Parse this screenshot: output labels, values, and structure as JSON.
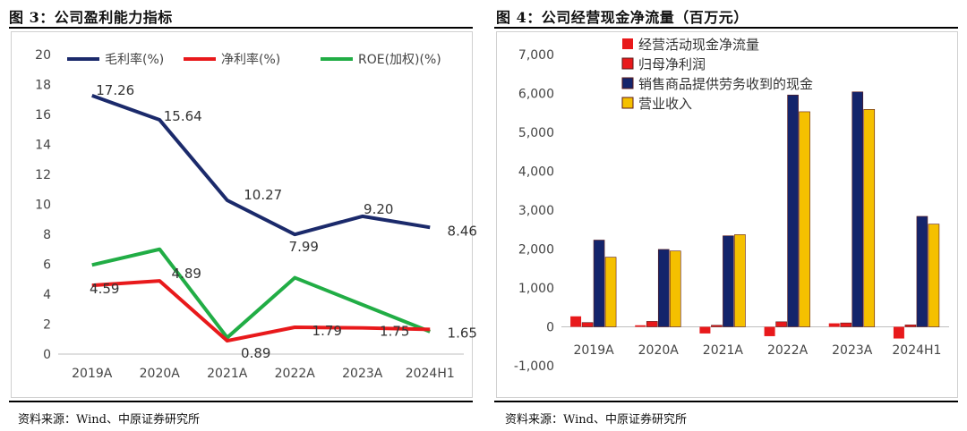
{
  "left": {
    "title": "图 3：公司盈利能力指标",
    "source": "资料来源：Wind、中原证券研究所"
  },
  "right": {
    "title": "图 4：公司经营现金净流量（百万元）",
    "source": "资料来源：Wind、中原证券研究所"
  },
  "colors": {
    "navy": "#1b2a6b",
    "red": "#e8191b",
    "green": "#21ad45",
    "gold": "#f5c000",
    "bar_red": "#e8191b",
    "bar_brown": "#e8191b",
    "bar_navy": "#14246b"
  },
  "chart_data": [
    {
      "type": "line",
      "categories": [
        "2019A",
        "2020A",
        "2021A",
        "2022A",
        "2023A",
        "2024H1"
      ],
      "ylim": [
        0,
        20
      ],
      "yticks": [
        "0",
        "2",
        "4",
        "6",
        "8",
        "10",
        "12",
        "14",
        "16",
        "18",
        "20"
      ],
      "legend_position": "top",
      "grid": false,
      "series": [
        {
          "name": "毛利率(%)",
          "color": "#1b2a6b",
          "values": [
            17.26,
            15.64,
            10.27,
            7.99,
            9.2,
            8.46
          ],
          "labels": [
            "17.26",
            "15.64",
            "10.27",
            "7.99",
            "9.20",
            "8.46"
          ]
        },
        {
          "name": "净利率(%)",
          "color": "#e8191b",
          "values": [
            4.59,
            4.89,
            0.89,
            1.79,
            1.75,
            1.65
          ],
          "labels": [
            "4.59",
            "4.89",
            "0.89",
            "1.79",
            "1.75",
            "1.65"
          ]
        },
        {
          "name": "ROE(加权)(%)",
          "color": "#21ad45",
          "values": [
            5.95,
            7.0,
            1.1,
            5.1,
            3.3,
            1.5
          ],
          "labels": []
        }
      ]
    },
    {
      "type": "bar",
      "categories": [
        "2019A",
        "2020A",
        "2021A",
        "2022A",
        "2023A",
        "2024H1"
      ],
      "ylim": [
        -1000,
        7000
      ],
      "yticks": [
        "-1,000",
        "0",
        "1,000",
        "2,000",
        "3,000",
        "4,000",
        "5,000",
        "6,000",
        "7,000"
      ],
      "legend_position": "top-left",
      "grid": false,
      "series": [
        {
          "name": "经营活动现金净流量",
          "color": "#e8191b",
          "values": [
            270,
            40,
            -170,
            -240,
            90,
            -300
          ]
        },
        {
          "name": "归母净利润",
          "color": "#e8191b",
          "values": [
            110,
            140,
            40,
            130,
            100,
            50
          ]
        },
        {
          "name": "销售商品提供劳务收到的现金",
          "color": "#14246b",
          "values": [
            2230,
            1990,
            2340,
            5960,
            6040,
            2840
          ]
        },
        {
          "name": "营业收入",
          "color": "#f5c000",
          "values": [
            1790,
            1950,
            2370,
            5530,
            5590,
            2640
          ]
        }
      ]
    }
  ]
}
